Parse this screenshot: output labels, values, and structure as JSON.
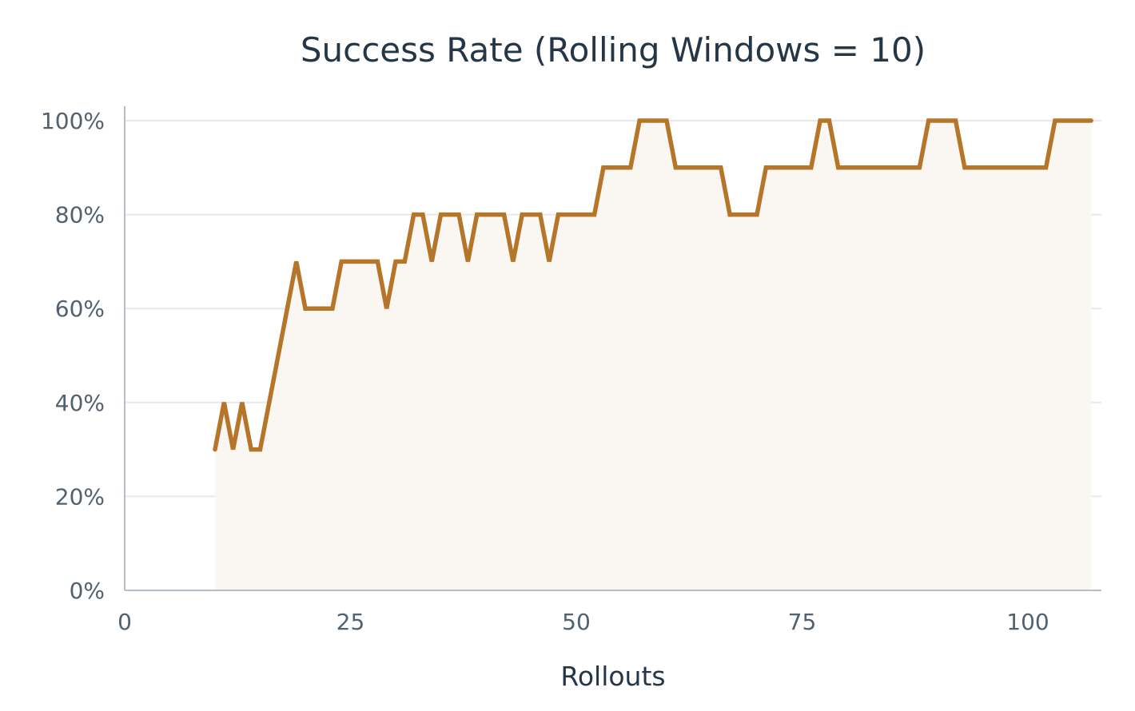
{
  "chart_data": {
    "type": "area",
    "title": "Success Rate (Rolling Windows = 10)",
    "xlabel": "Rollouts",
    "ylabel": "",
    "xlim": [
      0,
      108
    ],
    "ylim": [
      0,
      100
    ],
    "xticks": [
      0,
      25,
      50,
      75,
      100
    ],
    "xtick_labels": [
      "0",
      "25",
      "50",
      "75",
      "100"
    ],
    "yticks": [
      0,
      20,
      40,
      60,
      80,
      100
    ],
    "ytick_labels": [
      "0%",
      "20%",
      "40%",
      "60%",
      "80%",
      "100%"
    ],
    "grid": true,
    "colors": {
      "line": "#b5762a",
      "fill": "#faf6f2",
      "text": "#253746",
      "tick": "#516170"
    },
    "series": [
      {
        "x": [
          10,
          11,
          12,
          13,
          14,
          15,
          16,
          17,
          18,
          19,
          20,
          21,
          22,
          23,
          24,
          25,
          26,
          27,
          28,
          29,
          30,
          31,
          32,
          33,
          34,
          35,
          36,
          37,
          38,
          39,
          40,
          41,
          42,
          43,
          44,
          45,
          46,
          47,
          48,
          49,
          50,
          51,
          52,
          53,
          54,
          55,
          56,
          57,
          58,
          59,
          60,
          61,
          62,
          63,
          64,
          65,
          66,
          67,
          68,
          69,
          70,
          71,
          72,
          73,
          74,
          75,
          76,
          77,
          78,
          79,
          80,
          81,
          82,
          83,
          84,
          85,
          86,
          87,
          88,
          89,
          90,
          91,
          92,
          93,
          94,
          95,
          96,
          97,
          98,
          99,
          100,
          101,
          102,
          103,
          104,
          105,
          106,
          107
        ],
        "y": [
          30,
          40,
          30,
          40,
          30,
          30,
          40,
          50,
          60,
          70,
          60,
          60,
          60,
          60,
          70,
          70,
          70,
          70,
          70,
          60,
          70,
          70,
          80,
          80,
          70,
          80,
          80,
          80,
          70,
          80,
          80,
          80,
          80,
          70,
          80,
          80,
          80,
          70,
          80,
          80,
          80,
          80,
          80,
          90,
          90,
          90,
          90,
          100,
          100,
          100,
          100,
          90,
          90,
          90,
          90,
          90,
          90,
          80,
          80,
          80,
          80,
          90,
          90,
          90,
          90,
          90,
          90,
          100,
          100,
          90,
          90,
          90,
          90,
          90,
          90,
          90,
          90,
          90,
          90,
          100,
          100,
          100,
          100,
          90,
          90,
          90,
          90,
          90,
          90,
          90,
          90,
          90,
          90,
          100,
          100,
          100,
          100,
          100
        ]
      }
    ]
  }
}
